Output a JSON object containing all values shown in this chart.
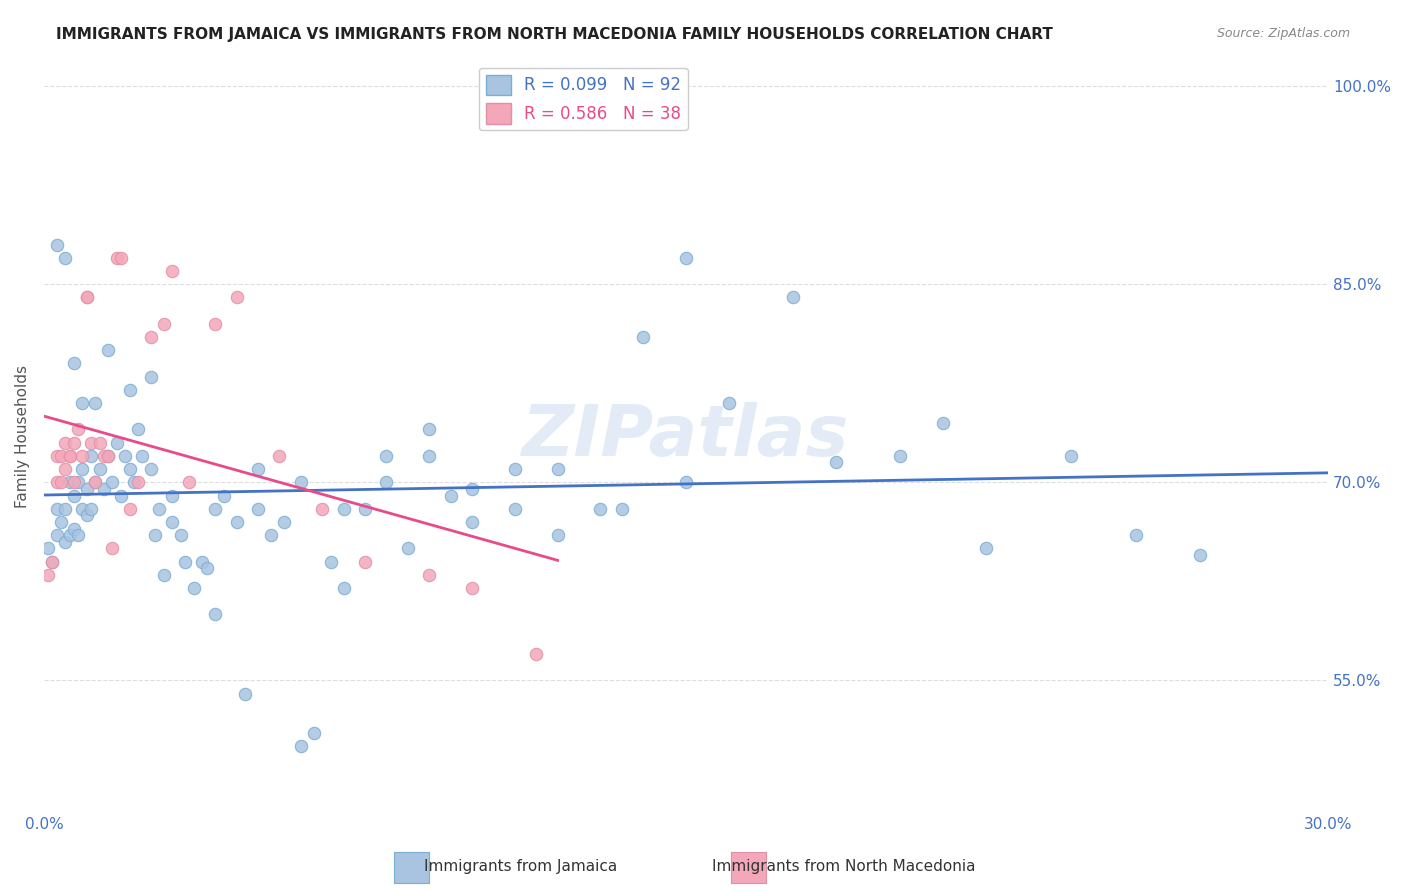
{
  "title": "IMMIGRANTS FROM JAMAICA VS IMMIGRANTS FROM NORTH MACEDONIA FAMILY HOUSEHOLDS CORRELATION CHART",
  "source": "Source: ZipAtlas.com",
  "ylabel": "Family Households",
  "xlabel": "",
  "xlim": [
    0.0,
    0.3
  ],
  "ylim": [
    0.45,
    1.02
  ],
  "yticks": [
    0.55,
    0.7,
    0.85,
    1.0
  ],
  "ytick_labels": [
    "55.0%",
    "70.0%",
    "85.0%",
    "100.0%"
  ],
  "xticks": [
    0.0,
    0.05,
    0.1,
    0.15,
    0.2,
    0.25,
    0.3
  ],
  "xtick_labels": [
    "0.0%",
    "",
    "",
    "",
    "",
    "",
    "30.0%"
  ],
  "R_jamaica": 0.099,
  "N_jamaica": 92,
  "R_macedonia": 0.586,
  "N_macedonia": 38,
  "color_jamaica": "#a8c4e0",
  "color_macedonia": "#f4a7b9",
  "line_color_jamaica": "#4472c4",
  "line_color_macedonia": "#e84b8a",
  "watermark": "ZIPatlas",
  "watermark_color": "#d0dff0",
  "background_color": "#ffffff",
  "grid_color": "#dddddd",
  "title_color": "#222222",
  "axis_label_color": "#4472c4",
  "jamaica_scatter_x": [
    0.001,
    0.002,
    0.003,
    0.003,
    0.004,
    0.005,
    0.005,
    0.006,
    0.006,
    0.007,
    0.007,
    0.008,
    0.008,
    0.009,
    0.009,
    0.01,
    0.01,
    0.011,
    0.011,
    0.012,
    0.013,
    0.014,
    0.015,
    0.016,
    0.017,
    0.018,
    0.019,
    0.02,
    0.021,
    0.022,
    0.023,
    0.025,
    0.026,
    0.027,
    0.028,
    0.03,
    0.032,
    0.033,
    0.035,
    0.037,
    0.038,
    0.04,
    0.042,
    0.045,
    0.047,
    0.05,
    0.053,
    0.056,
    0.06,
    0.063,
    0.067,
    0.07,
    0.075,
    0.08,
    0.085,
    0.09,
    0.095,
    0.1,
    0.11,
    0.12,
    0.13,
    0.14,
    0.15,
    0.16,
    0.175,
    0.185,
    0.2,
    0.21,
    0.22,
    0.24,
    0.255,
    0.27,
    0.003,
    0.005,
    0.007,
    0.009,
    0.012,
    0.015,
    0.02,
    0.025,
    0.03,
    0.04,
    0.05,
    0.06,
    0.07,
    0.08,
    0.09,
    0.1,
    0.11,
    0.12,
    0.135,
    0.15
  ],
  "jamaica_scatter_y": [
    0.65,
    0.64,
    0.66,
    0.68,
    0.67,
    0.655,
    0.68,
    0.66,
    0.7,
    0.665,
    0.69,
    0.66,
    0.7,
    0.68,
    0.71,
    0.675,
    0.695,
    0.72,
    0.68,
    0.7,
    0.71,
    0.695,
    0.72,
    0.7,
    0.73,
    0.69,
    0.72,
    0.71,
    0.7,
    0.74,
    0.72,
    0.71,
    0.66,
    0.68,
    0.63,
    0.67,
    0.66,
    0.64,
    0.62,
    0.64,
    0.635,
    0.6,
    0.69,
    0.67,
    0.54,
    0.68,
    0.66,
    0.67,
    0.5,
    0.51,
    0.64,
    0.62,
    0.68,
    0.7,
    0.65,
    0.72,
    0.69,
    0.67,
    0.71,
    0.71,
    0.68,
    0.81,
    0.87,
    0.76,
    0.84,
    0.715,
    0.72,
    0.745,
    0.65,
    0.72,
    0.66,
    0.645,
    0.88,
    0.87,
    0.79,
    0.76,
    0.76,
    0.8,
    0.77,
    0.78,
    0.69,
    0.68,
    0.71,
    0.7,
    0.68,
    0.72,
    0.74,
    0.695,
    0.68,
    0.66,
    0.68,
    0.7
  ],
  "macedonia_scatter_x": [
    0.001,
    0.002,
    0.003,
    0.003,
    0.004,
    0.004,
    0.005,
    0.005,
    0.006,
    0.006,
    0.007,
    0.007,
    0.008,
    0.009,
    0.01,
    0.01,
    0.011,
    0.012,
    0.013,
    0.014,
    0.015,
    0.016,
    0.017,
    0.018,
    0.02,
    0.022,
    0.025,
    0.028,
    0.03,
    0.034,
    0.04,
    0.045,
    0.055,
    0.065,
    0.075,
    0.09,
    0.1,
    0.115
  ],
  "macedonia_scatter_y": [
    0.63,
    0.64,
    0.7,
    0.72,
    0.7,
    0.72,
    0.71,
    0.73,
    0.72,
    0.72,
    0.7,
    0.73,
    0.74,
    0.72,
    0.84,
    0.84,
    0.73,
    0.7,
    0.73,
    0.72,
    0.72,
    0.65,
    0.87,
    0.87,
    0.68,
    0.7,
    0.81,
    0.82,
    0.86,
    0.7,
    0.82,
    0.84,
    0.72,
    0.68,
    0.64,
    0.63,
    0.62,
    0.57
  ],
  "legend_loc": "upper center"
}
